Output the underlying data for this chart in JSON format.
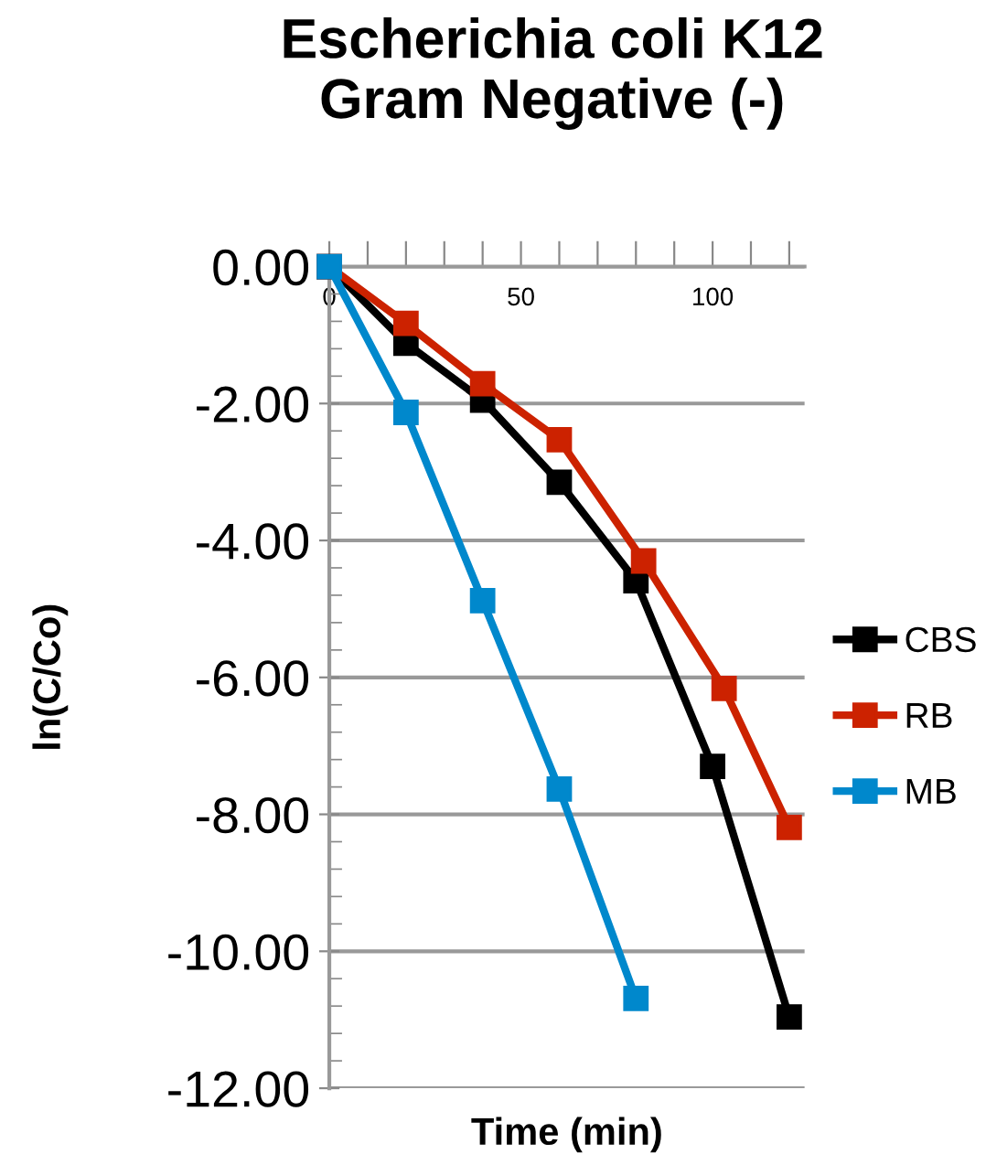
{
  "chart_data": {
    "type": "line",
    "title": "Escherichia coli K12\nGram Negative (-)",
    "xlabel": "Time (min)",
    "ylabel": "ln(C/Co)",
    "series": [
      {
        "name": "CBS",
        "color": "#000000",
        "x": [
          0,
          20,
          40,
          60,
          80,
          100,
          120
        ],
        "values": [
          0,
          -1.12,
          -1.95,
          -3.15,
          -4.59,
          -7.3,
          -10.96
        ]
      },
      {
        "name": "RB",
        "color": "#cc2200",
        "x": [
          0,
          20,
          40,
          60,
          82,
          103,
          120
        ],
        "values": [
          0,
          -0.83,
          -1.71,
          -2.53,
          -4.3,
          -6.16,
          -8.19
        ]
      },
      {
        "name": "MB",
        "color": "#0088cc",
        "x": [
          0,
          20,
          40,
          60,
          80
        ],
        "values": [
          0,
          -2.13,
          -4.88,
          -7.63,
          -10.69
        ]
      }
    ],
    "xlim": [
      0,
      124
    ],
    "ylim": [
      -12,
      0
    ],
    "xticks": [
      0,
      {
        "value": 10,
        "label": null
      },
      {
        "value": 20,
        "label": null
      },
      {
        "value": 30,
        "label": null
      },
      {
        "value": 40,
        "label": null
      },
      50,
      {
        "value": 60,
        "label": null
      },
      {
        "value": 70,
        "label": null
      },
      {
        "value": 80,
        "label": null
      },
      {
        "value": 90,
        "label": null
      },
      100,
      {
        "value": 110,
        "label": null
      },
      {
        "value": 120,
        "label": null
      }
    ],
    "yticks": [
      {
        "value": -12,
        "label": "-12.00"
      },
      {
        "value": -10,
        "label": "-10.00"
      },
      {
        "value": -8,
        "label": "-8.00"
      },
      {
        "value": -6,
        "label": "-6.00"
      },
      {
        "value": -4,
        "label": "-4.00"
      },
      {
        "value": -2,
        "label": "-2.00"
      },
      {
        "value": 0,
        "label": "0.00"
      }
    ],
    "grid": "y",
    "legend": "right",
    "marker": "square",
    "line_style": "solid"
  }
}
